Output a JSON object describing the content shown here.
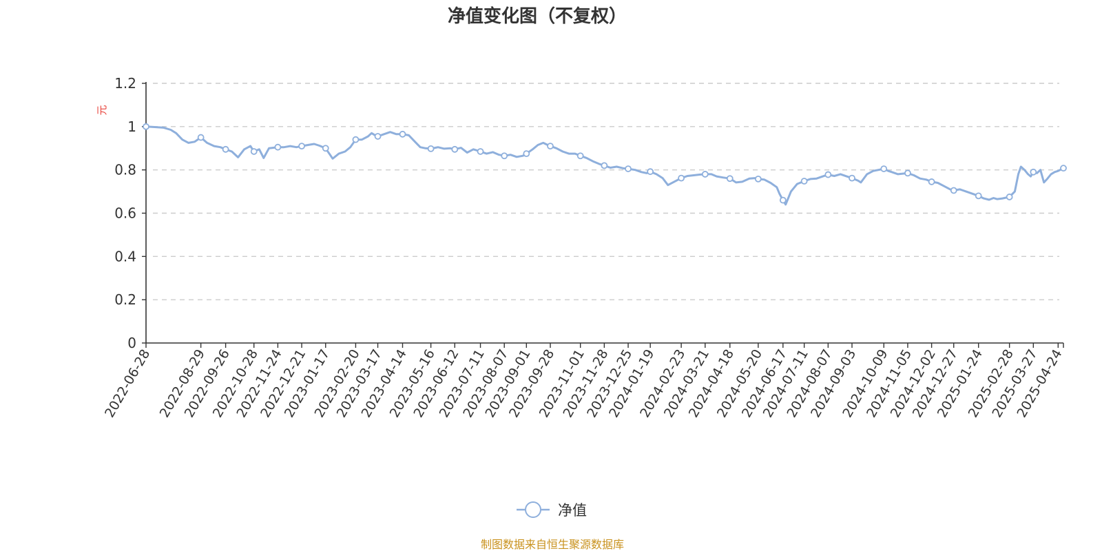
{
  "colors": {
    "series": "#8eafdc",
    "grid": "#cccccc",
    "axis": "#333333",
    "unit": "#e8423a",
    "source": "#c9921e"
  },
  "chart_data": {
    "type": "line",
    "title": "净值变化图（不复权）",
    "ylabel": "元",
    "ylim": [
      0,
      1.2
    ],
    "yticks": [
      0,
      0.2,
      0.4,
      0.6,
      0.8,
      1,
      1.2
    ],
    "y_tick_labels": [
      "0",
      "0.2",
      "0.4",
      "0.6",
      "0.8",
      "1",
      "1.2"
    ],
    "grid": true,
    "legend_position": "bottom-center",
    "xlim": [
      "2022-06-28",
      "2025-04-30"
    ],
    "x_tick_labels": [
      "2022-06-28",
      "2022-08-29",
      "2022-09-26",
      "2022-10-28",
      "2022-11-24",
      "2022-12-21",
      "2023-01-17",
      "2023-02-20",
      "2023-03-17",
      "2023-04-14",
      "2023-05-16",
      "2023-06-12",
      "2023-07-11",
      "2023-08-07",
      "2023-09-01",
      "2023-09-28",
      "2023-11-01",
      "2023-11-28",
      "2023-12-25",
      "2024-01-19",
      "2024-02-23",
      "2024-03-21",
      "2024-04-18",
      "2024-05-20",
      "2024-06-17",
      "2024-07-11",
      "2024-08-07",
      "2024-09-03",
      "2024-10-09",
      "2024-11-05",
      "2024-12-02",
      "2024-12-27",
      "2025-01-24",
      "2025-02-28",
      "2025-03-27",
      "2025-04-24"
    ],
    "series": [
      {
        "name": "净值",
        "marker_dates": [
          "2022-06-28",
          "2022-08-29",
          "2022-09-26",
          "2022-10-28",
          "2022-11-24",
          "2022-12-21",
          "2023-01-17",
          "2023-02-20",
          "2023-03-17",
          "2023-04-14",
          "2023-05-16",
          "2023-06-12",
          "2023-07-11",
          "2023-08-07",
          "2023-09-01",
          "2023-09-28",
          "2023-11-01",
          "2023-11-28",
          "2023-12-25",
          "2024-01-19",
          "2024-02-23",
          "2024-03-21",
          "2024-04-18",
          "2024-05-20",
          "2024-06-17",
          "2024-07-11",
          "2024-08-07",
          "2024-09-03",
          "2024-10-09",
          "2024-11-05",
          "2024-12-02",
          "2024-12-27",
          "2025-01-24",
          "2025-02-28",
          "2025-03-27",
          "2025-04-30"
        ],
        "points": [
          [
            "2022-06-28",
            1.0
          ],
          [
            "2022-07-08",
            0.998
          ],
          [
            "2022-07-18",
            0.995
          ],
          [
            "2022-07-26",
            0.985
          ],
          [
            "2022-08-01",
            0.97
          ],
          [
            "2022-08-08",
            0.94
          ],
          [
            "2022-08-15",
            0.925
          ],
          [
            "2022-08-22",
            0.93
          ],
          [
            "2022-08-29",
            0.95
          ],
          [
            "2022-09-05",
            0.925
          ],
          [
            "2022-09-13",
            0.91
          ],
          [
            "2022-09-20",
            0.905
          ],
          [
            "2022-09-26",
            0.895
          ],
          [
            "2022-10-03",
            0.885
          ],
          [
            "2022-10-10",
            0.858
          ],
          [
            "2022-10-17",
            0.895
          ],
          [
            "2022-10-24",
            0.91
          ],
          [
            "2022-10-28",
            0.885
          ],
          [
            "2022-11-03",
            0.895
          ],
          [
            "2022-11-08",
            0.855
          ],
          [
            "2022-11-14",
            0.9
          ],
          [
            "2022-11-24",
            0.905
          ],
          [
            "2022-12-01",
            0.905
          ],
          [
            "2022-12-08",
            0.91
          ],
          [
            "2022-12-15",
            0.905
          ],
          [
            "2022-12-21",
            0.91
          ],
          [
            "2022-12-28",
            0.915
          ],
          [
            "2023-01-04",
            0.92
          ],
          [
            "2023-01-10",
            0.912
          ],
          [
            "2023-01-17",
            0.9
          ],
          [
            "2023-01-22",
            0.87
          ],
          [
            "2023-01-25",
            0.852
          ],
          [
            "2023-02-01",
            0.875
          ],
          [
            "2023-02-08",
            0.885
          ],
          [
            "2023-02-14",
            0.905
          ],
          [
            "2023-02-20",
            0.94
          ],
          [
            "2023-02-27",
            0.94
          ],
          [
            "2023-03-06",
            0.955
          ],
          [
            "2023-03-10",
            0.97
          ],
          [
            "2023-03-14",
            0.96
          ],
          [
            "2023-03-17",
            0.955
          ],
          [
            "2023-03-24",
            0.965
          ],
          [
            "2023-03-31",
            0.975
          ],
          [
            "2023-04-07",
            0.965
          ],
          [
            "2023-04-14",
            0.965
          ],
          [
            "2023-04-21",
            0.96
          ],
          [
            "2023-04-28",
            0.93
          ],
          [
            "2023-05-04",
            0.905
          ],
          [
            "2023-05-10",
            0.9
          ],
          [
            "2023-05-16",
            0.898
          ],
          [
            "2023-05-24",
            0.905
          ],
          [
            "2023-05-31",
            0.898
          ],
          [
            "2023-06-07",
            0.9
          ],
          [
            "2023-06-12",
            0.895
          ],
          [
            "2023-06-19",
            0.902
          ],
          [
            "2023-06-26",
            0.88
          ],
          [
            "2023-07-03",
            0.895
          ],
          [
            "2023-07-11",
            0.885
          ],
          [
            "2023-07-18",
            0.875
          ],
          [
            "2023-07-25",
            0.882
          ],
          [
            "2023-08-01",
            0.87
          ],
          [
            "2023-08-07",
            0.865
          ],
          [
            "2023-08-14",
            0.87
          ],
          [
            "2023-08-21",
            0.86
          ],
          [
            "2023-08-28",
            0.865
          ],
          [
            "2023-09-01",
            0.875
          ],
          [
            "2023-09-08",
            0.895
          ],
          [
            "2023-09-14",
            0.915
          ],
          [
            "2023-09-20",
            0.925
          ],
          [
            "2023-09-25",
            0.915
          ],
          [
            "2023-09-28",
            0.91
          ],
          [
            "2023-10-05",
            0.9
          ],
          [
            "2023-10-12",
            0.885
          ],
          [
            "2023-10-19",
            0.875
          ],
          [
            "2023-10-26",
            0.875
          ],
          [
            "2023-11-01",
            0.865
          ],
          [
            "2023-11-08",
            0.855
          ],
          [
            "2023-11-15",
            0.84
          ],
          [
            "2023-11-22",
            0.828
          ],
          [
            "2023-11-28",
            0.82
          ],
          [
            "2023-12-05",
            0.81
          ],
          [
            "2023-12-12",
            0.815
          ],
          [
            "2023-12-19",
            0.808
          ],
          [
            "2023-12-25",
            0.805
          ],
          [
            "2024-01-02",
            0.8
          ],
          [
            "2024-01-09",
            0.79
          ],
          [
            "2024-01-15",
            0.785
          ],
          [
            "2024-01-19",
            0.792
          ],
          [
            "2024-01-26",
            0.78
          ],
          [
            "2024-02-02",
            0.762
          ],
          [
            "2024-02-08",
            0.73
          ],
          [
            "2024-02-15",
            0.745
          ],
          [
            "2024-02-23",
            0.762
          ],
          [
            "2024-03-01",
            0.772
          ],
          [
            "2024-03-08",
            0.775
          ],
          [
            "2024-03-14",
            0.778
          ],
          [
            "2024-03-21",
            0.78
          ],
          [
            "2024-03-28",
            0.78
          ],
          [
            "2024-04-03",
            0.77
          ],
          [
            "2024-04-10",
            0.765
          ],
          [
            "2024-04-18",
            0.76
          ],
          [
            "2024-04-25",
            0.742
          ],
          [
            "2024-05-02",
            0.745
          ],
          [
            "2024-05-10",
            0.76
          ],
          [
            "2024-05-16",
            0.762
          ],
          [
            "2024-05-20",
            0.758
          ],
          [
            "2024-05-27",
            0.755
          ],
          [
            "2024-06-03",
            0.74
          ],
          [
            "2024-06-10",
            0.72
          ],
          [
            "2024-06-13",
            0.69
          ],
          [
            "2024-06-17",
            0.66
          ],
          [
            "2024-06-20",
            0.64
          ],
          [
            "2024-06-26",
            0.7
          ],
          [
            "2024-07-03",
            0.735
          ],
          [
            "2024-07-11",
            0.748
          ],
          [
            "2024-07-18",
            0.758
          ],
          [
            "2024-07-25",
            0.76
          ],
          [
            "2024-08-01",
            0.77
          ],
          [
            "2024-08-07",
            0.778
          ],
          [
            "2024-08-14",
            0.772
          ],
          [
            "2024-08-21",
            0.78
          ],
          [
            "2024-08-28",
            0.77
          ],
          [
            "2024-09-03",
            0.762
          ],
          [
            "2024-09-10",
            0.75
          ],
          [
            "2024-09-13",
            0.742
          ],
          [
            "2024-09-20",
            0.78
          ],
          [
            "2024-09-27",
            0.795
          ],
          [
            "2024-10-09",
            0.805
          ],
          [
            "2024-10-14",
            0.795
          ],
          [
            "2024-10-18",
            0.79
          ],
          [
            "2024-10-25",
            0.78
          ],
          [
            "2024-11-05",
            0.785
          ],
          [
            "2024-11-12",
            0.775
          ],
          [
            "2024-11-19",
            0.76
          ],
          [
            "2024-11-26",
            0.755
          ],
          [
            "2024-12-02",
            0.745
          ],
          [
            "2024-12-09",
            0.74
          ],
          [
            "2024-12-16",
            0.725
          ],
          [
            "2024-12-23",
            0.71
          ],
          [
            "2024-12-27",
            0.705
          ],
          [
            "2025-01-03",
            0.71
          ],
          [
            "2025-01-10",
            0.7
          ],
          [
            "2025-01-17",
            0.69
          ],
          [
            "2025-01-24",
            0.68
          ],
          [
            "2025-01-30",
            0.668
          ],
          [
            "2025-02-05",
            0.662
          ],
          [
            "2025-02-10",
            0.67
          ],
          [
            "2025-02-14",
            0.665
          ],
          [
            "2025-02-20",
            0.668
          ],
          [
            "2025-02-28",
            0.675
          ],
          [
            "2025-03-06",
            0.7
          ],
          [
            "2025-03-10",
            0.78
          ],
          [
            "2025-03-13",
            0.815
          ],
          [
            "2025-03-17",
            0.8
          ],
          [
            "2025-03-21",
            0.78
          ],
          [
            "2025-03-24",
            0.77
          ],
          [
            "2025-03-27",
            0.79
          ],
          [
            "2025-03-31",
            0.785
          ],
          [
            "2025-04-04",
            0.8
          ],
          [
            "2025-04-08",
            0.742
          ],
          [
            "2025-04-12",
            0.76
          ],
          [
            "2025-04-16",
            0.78
          ],
          [
            "2025-04-20",
            0.79
          ],
          [
            "2025-04-24",
            0.795
          ],
          [
            "2025-04-30",
            0.808
          ]
        ]
      }
    ],
    "source_note": "制图数据来自恒生聚源数据库"
  }
}
